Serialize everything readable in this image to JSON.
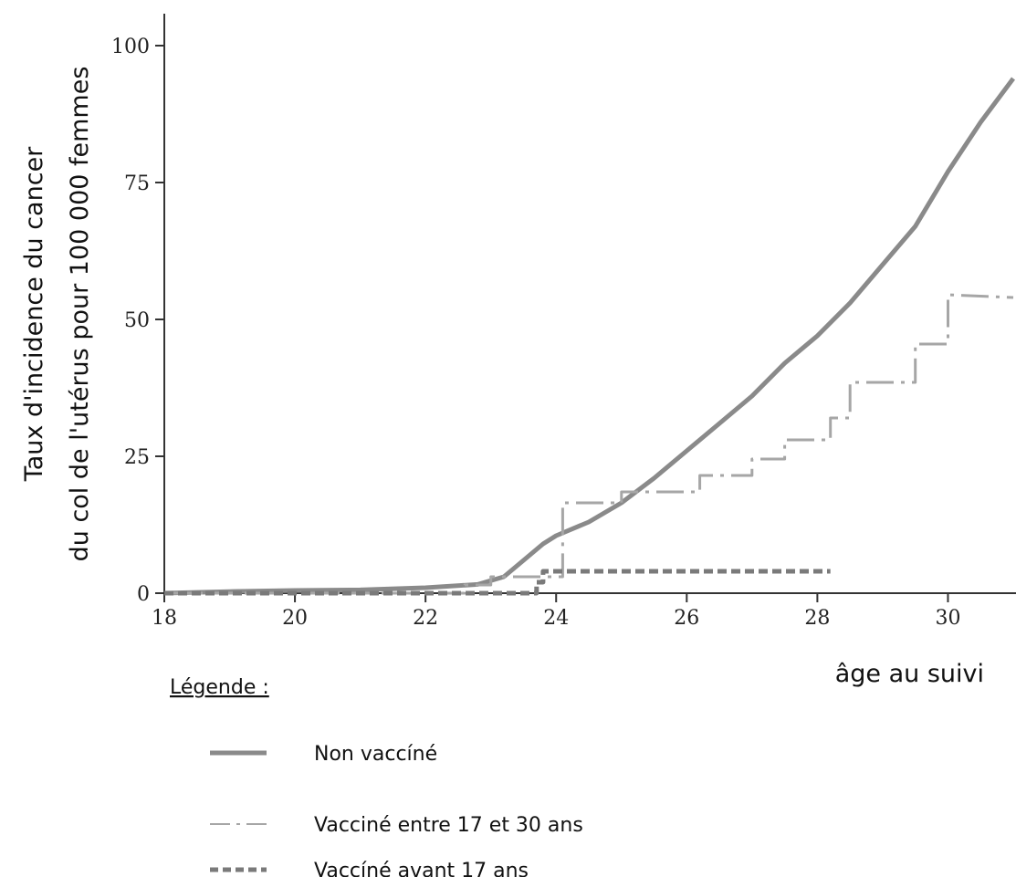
{
  "chart_data": {
    "type": "line",
    "xlabel": "âge au suivi",
    "ylabel_line1": "Taux d'incidence du cancer",
    "ylabel_line2": "du col de l'utérus pour 100 000 femmes",
    "xlim": [
      18,
      31
    ],
    "ylim": [
      0,
      100
    ],
    "xticks": [
      18,
      20,
      22,
      24,
      26,
      28,
      30
    ],
    "yticks": [
      0,
      25,
      50,
      75,
      100
    ],
    "grid": false,
    "legend_title": "Légende :",
    "legend_position": "bottom-left",
    "series": [
      {
        "name": "Non vaccíné",
        "style": "solid",
        "color": "#8a8a8a",
        "points": [
          [
            18,
            0
          ],
          [
            19,
            0.3
          ],
          [
            20,
            0.5
          ],
          [
            21,
            0.6
          ],
          [
            22,
            1.0
          ],
          [
            22.8,
            1.6
          ],
          [
            23.2,
            3
          ],
          [
            23.5,
            6
          ],
          [
            23.8,
            9
          ],
          [
            24,
            10.5
          ],
          [
            24.5,
            13
          ],
          [
            25,
            16.5
          ],
          [
            25.5,
            21
          ],
          [
            26,
            26
          ],
          [
            26.5,
            31
          ],
          [
            27,
            36
          ],
          [
            27.5,
            42
          ],
          [
            28,
            47
          ],
          [
            28.5,
            53
          ],
          [
            29,
            60
          ],
          [
            29.5,
            67
          ],
          [
            30,
            77
          ],
          [
            30.5,
            86
          ],
          [
            31,
            94
          ]
        ]
      },
      {
        "name": "Vacciné entre 17 et 30 ans",
        "style": "dash",
        "color": "#a6a6a6",
        "points": [
          [
            18,
            0
          ],
          [
            22.6,
            0
          ],
          [
            22.6,
            1.5
          ],
          [
            23,
            1.5
          ],
          [
            23,
            3
          ],
          [
            24.1,
            3
          ],
          [
            24.1,
            16.5
          ],
          [
            25,
            16.5
          ],
          [
            25,
            18.5
          ],
          [
            26.2,
            18.5
          ],
          [
            26.2,
            21.5
          ],
          [
            27,
            21.5
          ],
          [
            27,
            24.5
          ],
          [
            27.5,
            24.5
          ],
          [
            27.5,
            28
          ],
          [
            28.2,
            28
          ],
          [
            28.2,
            32
          ],
          [
            28.5,
            32
          ],
          [
            28.5,
            38.5
          ],
          [
            29.5,
            38.5
          ],
          [
            29.5,
            45.5
          ],
          [
            30,
            45.5
          ],
          [
            30,
            54.5
          ],
          [
            31,
            54
          ]
        ]
      },
      {
        "name": "Vaccíné avant 17 ans",
        "style": "dot",
        "color": "#7a7a7a",
        "points": [
          [
            18,
            0
          ],
          [
            23.7,
            0
          ],
          [
            23.7,
            2
          ],
          [
            23.8,
            2
          ],
          [
            23.8,
            4
          ],
          [
            28.2,
            4
          ]
        ]
      }
    ]
  }
}
